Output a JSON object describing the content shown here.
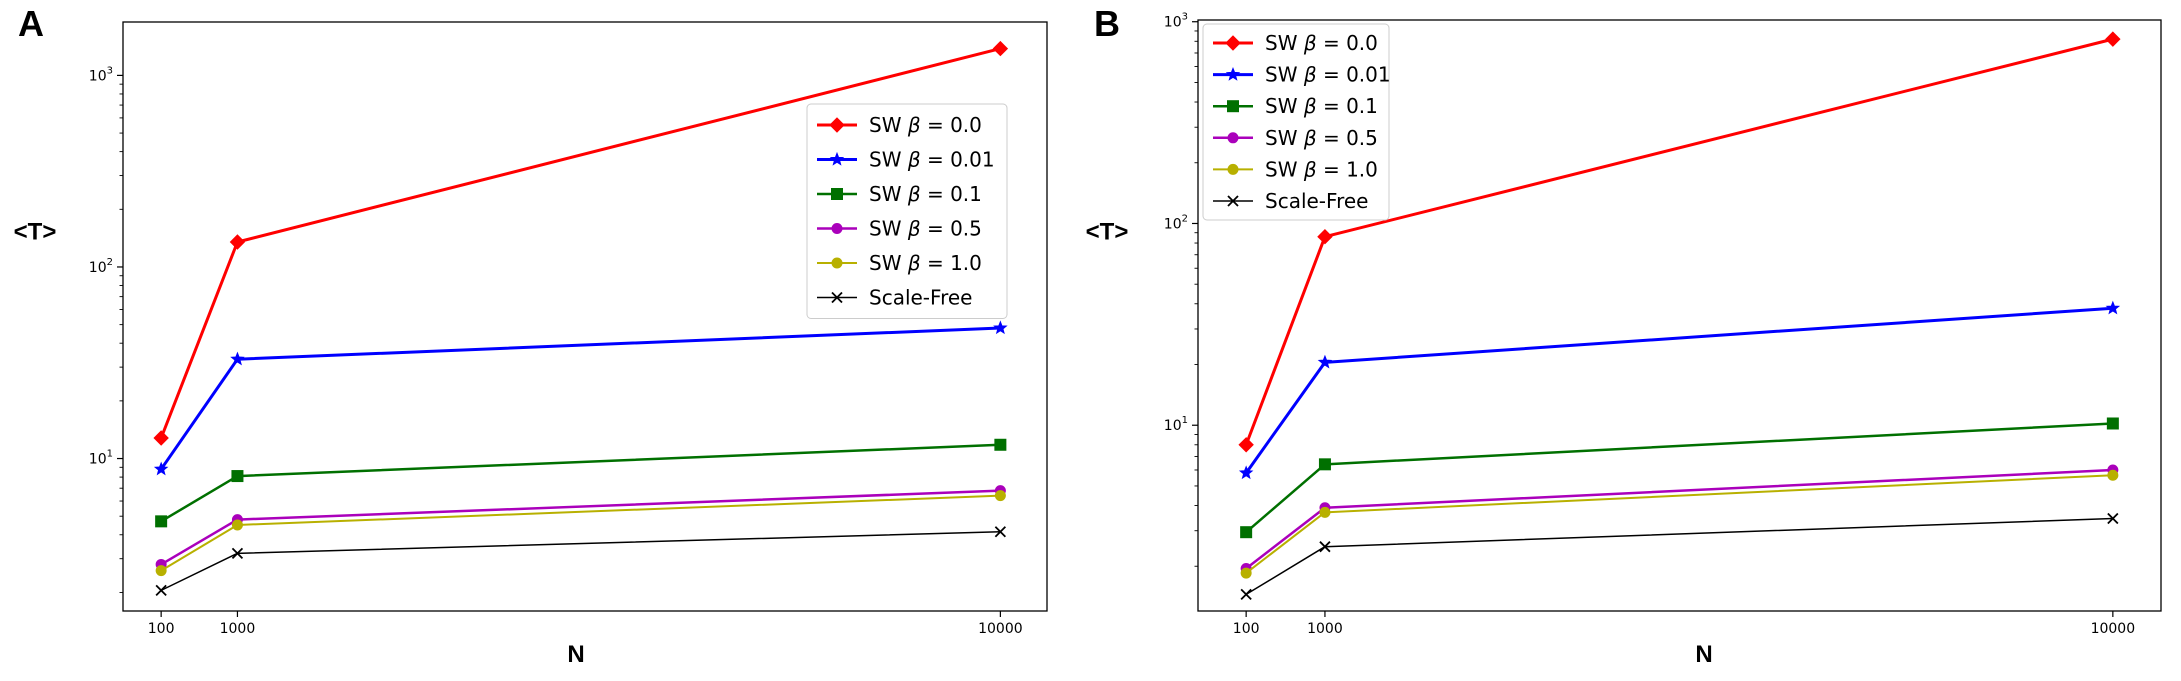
{
  "chart_data": [
    {
      "panel": "A",
      "type": "line",
      "xscale": "linear",
      "yscale": "log",
      "xlabel": "N",
      "ylabel": "<T>",
      "x_ticks": [
        100,
        1000,
        10000
      ],
      "x_tick_labels": [
        "100",
        "1000",
        "10000"
      ],
      "xlim": [
        -350,
        10550
      ],
      "ylim": [
        1.6,
        1900
      ],
      "y_major_ticks": [
        10,
        100,
        1000
      ],
      "y_major_tick_labels": [
        {
          "base": "10",
          "exp": "1"
        },
        {
          "base": "10",
          "exp": "2"
        },
        {
          "base": "10",
          "exp": "3"
        }
      ],
      "legend_position": "upper-right",
      "series": [
        {
          "name": "SW β = 0.0",
          "label_prefix": "SW ",
          "label_symbol": "β",
          "label_suffix": " = 0.0",
          "color": "#ff0000",
          "marker": "diamond",
          "linewidth": 3,
          "x": [
            100,
            1000,
            10000
          ],
          "y": [
            12.8,
            135,
            1380
          ]
        },
        {
          "name": "SW β = 0.01",
          "label_prefix": "SW ",
          "label_symbol": "β",
          "label_suffix": " = 0.01",
          "color": "#0000ff",
          "marker": "star",
          "linewidth": 3,
          "x": [
            100,
            1000,
            10000
          ],
          "y": [
            8.8,
            33,
            48
          ]
        },
        {
          "name": "SW β = 0.1",
          "label_prefix": "SW ",
          "label_symbol": "β",
          "label_suffix": " = 0.1",
          "color": "#007000",
          "marker": "square",
          "linewidth": 2.5,
          "x": [
            100,
            1000,
            10000
          ],
          "y": [
            4.7,
            8.1,
            11.8
          ]
        },
        {
          "name": "SW β = 0.5",
          "label_prefix": "SW ",
          "label_symbol": "β",
          "label_suffix": " = 0.5",
          "color": "#aa00bb",
          "marker": "circle",
          "linewidth": 2.5,
          "x": [
            100,
            1000,
            10000
          ],
          "y": [
            2.8,
            4.8,
            6.8
          ]
        },
        {
          "name": "SW β = 1.0",
          "label_prefix": "SW ",
          "label_symbol": "β",
          "label_suffix": " = 1.0",
          "color": "#b8b000",
          "marker": "circle",
          "linewidth": 2,
          "x": [
            100,
            1000,
            10000
          ],
          "y": [
            2.6,
            4.5,
            6.4
          ]
        },
        {
          "name": "Scale-Free",
          "label_prefix": "Scale-Free",
          "label_symbol": "",
          "label_suffix": "",
          "color": "#000000",
          "marker": "x",
          "linewidth": 1.5,
          "x": [
            100,
            1000,
            10000
          ],
          "y": [
            2.05,
            3.2,
            4.15
          ]
        }
      ]
    },
    {
      "panel": "B",
      "type": "line",
      "xscale": "linear",
      "yscale": "log",
      "xlabel": "N",
      "ylabel": "<T>",
      "x_ticks": [
        100,
        1000,
        10000
      ],
      "x_tick_labels": [
        "100",
        "1000",
        "10000"
      ],
      "xlim": [
        -450,
        10550
      ],
      "ylim": [
        1.2,
        1020
      ],
      "y_major_ticks": [
        10,
        100,
        1000
      ],
      "y_major_tick_labels": [
        {
          "base": "10",
          "exp": "1"
        },
        {
          "base": "10",
          "exp": "2"
        },
        {
          "base": "10",
          "exp": "3"
        }
      ],
      "legend_position": "upper-left",
      "series": [
        {
          "name": "SW β = 0.0",
          "label_prefix": "SW ",
          "label_symbol": "β",
          "label_suffix": " = 0.0",
          "color": "#ff0000",
          "marker": "diamond",
          "linewidth": 3,
          "x": [
            100,
            1000,
            10000
          ],
          "y": [
            8.0,
            86,
            820
          ]
        },
        {
          "name": "SW β = 0.01",
          "label_prefix": "SW ",
          "label_symbol": "β",
          "label_suffix": " = 0.01",
          "color": "#0000ff",
          "marker": "star",
          "linewidth": 3,
          "x": [
            100,
            1000,
            10000
          ],
          "y": [
            5.8,
            20.5,
            38
          ]
        },
        {
          "name": "SW β = 0.1",
          "label_prefix": "SW ",
          "label_symbol": "β",
          "label_suffix": " = 0.1",
          "color": "#007000",
          "marker": "square",
          "linewidth": 2.5,
          "x": [
            100,
            1000,
            10000
          ],
          "y": [
            2.95,
            6.4,
            10.2
          ]
        },
        {
          "name": "SW β = 0.5",
          "label_prefix": "SW ",
          "label_symbol": "β",
          "label_suffix": " = 0.5",
          "color": "#aa00bb",
          "marker": "circle",
          "linewidth": 2.5,
          "x": [
            100,
            1000,
            10000
          ],
          "y": [
            1.95,
            3.9,
            6.0
          ]
        },
        {
          "name": "SW β = 1.0",
          "label_prefix": "SW ",
          "label_symbol": "β",
          "label_suffix": " = 1.0",
          "color": "#b8b000",
          "marker": "circle",
          "linewidth": 2,
          "x": [
            100,
            1000,
            10000
          ],
          "y": [
            1.85,
            3.7,
            5.65
          ]
        },
        {
          "name": "Scale-Free",
          "label_prefix": "Scale-Free",
          "label_symbol": "",
          "label_suffix": "",
          "color": "#000000",
          "marker": "x",
          "linewidth": 1.5,
          "x": [
            100,
            1000,
            10000
          ],
          "y": [
            1.45,
            2.5,
            3.45
          ]
        }
      ]
    }
  ]
}
